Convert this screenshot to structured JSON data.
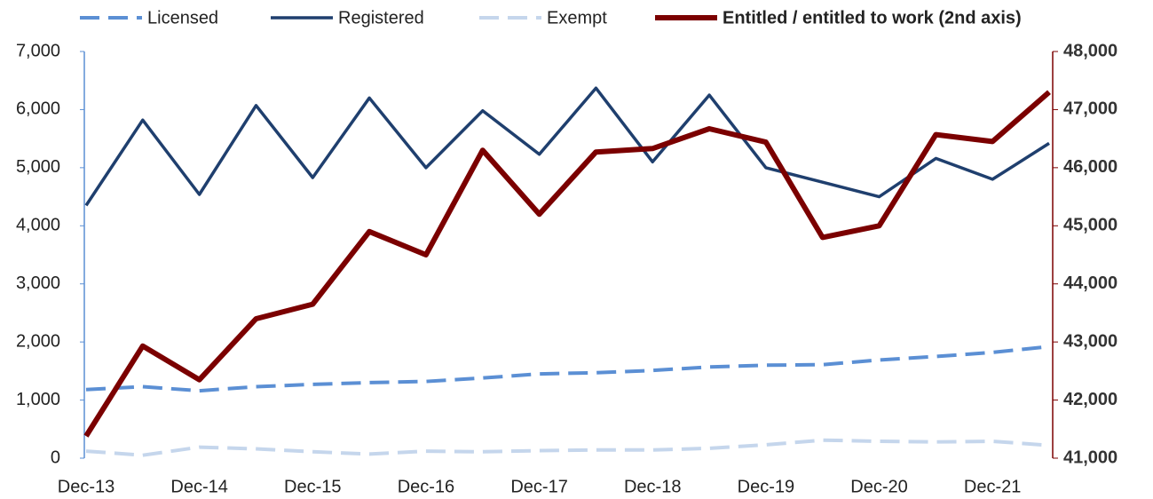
{
  "chart_data": {
    "type": "line",
    "categories": [
      "Dec-13",
      null,
      "Dec-14",
      null,
      "Dec-15",
      null,
      "Dec-16",
      null,
      "Dec-17",
      null,
      "Dec-18",
      null,
      "Dec-19",
      null,
      "Dec-20",
      null,
      "Dec-21",
      null
    ],
    "series": [
      {
        "name": "Licensed",
        "color": "#5b8fd4",
        "style": "dashed",
        "values": [
          1180,
          1230,
          1160,
          1230,
          1270,
          1300,
          1320,
          1380,
          1450,
          1470,
          1510,
          1570,
          1600,
          1610,
          1690,
          1750,
          1820,
          1920
        ]
      },
      {
        "name": "Registered",
        "color": "#1f3f6e",
        "style": "solid",
        "values": [
          4350,
          5820,
          4540,
          6070,
          4830,
          6200,
          5000,
          5980,
          5230,
          6370,
          5100,
          6250,
          5000,
          4750,
          4500,
          5160,
          4800,
          5420
        ]
      },
      {
        "name": "Exempt",
        "color": "#c5d6ec",
        "style": "dashed",
        "values": [
          120,
          50,
          190,
          160,
          110,
          70,
          120,
          110,
          130,
          140,
          140,
          170,
          230,
          310,
          290,
          280,
          290,
          220
        ]
      },
      {
        "name": "Entitled / entitled to work (2nd axis)",
        "color": "#7b0000",
        "style": "thick",
        "axis": "y2",
        "values": [
          41380,
          42930,
          42350,
          43400,
          43650,
          44900,
          44500,
          46300,
          45200,
          46270,
          46330,
          46670,
          46440,
          44800,
          45000,
          46570,
          46450,
          47300
        ]
      }
    ],
    "ylim": [
      0,
      7000
    ],
    "yticks": [
      0,
      {
        "value": 1000,
        "label": "1,000"
      },
      {
        "value": 2000,
        "label": "2,000"
      },
      {
        "value": 3000,
        "label": "3,000"
      },
      {
        "value": 4000,
        "label": "4,000"
      },
      {
        "value": 5000,
        "label": "5,000"
      },
      {
        "value": 6000,
        "label": "6,000"
      },
      {
        "value": 7000,
        "label": "7,000"
      }
    ],
    "y2lim": [
      41000,
      48000
    ],
    "y2ticks": [
      {
        "value": 41000,
        "label": "41,000"
      },
      {
        "value": 42000,
        "label": "42,000"
      },
      {
        "value": 43000,
        "label": "43,000"
      },
      {
        "value": 44000,
        "label": "44,000"
      },
      {
        "value": 45000,
        "label": "45,000"
      },
      {
        "value": 46000,
        "label": "46,000"
      },
      {
        "value": 47000,
        "label": "47,000"
      },
      {
        "value": 48000,
        "label": "48,000"
      }
    ],
    "legend": "top",
    "grid": false
  }
}
